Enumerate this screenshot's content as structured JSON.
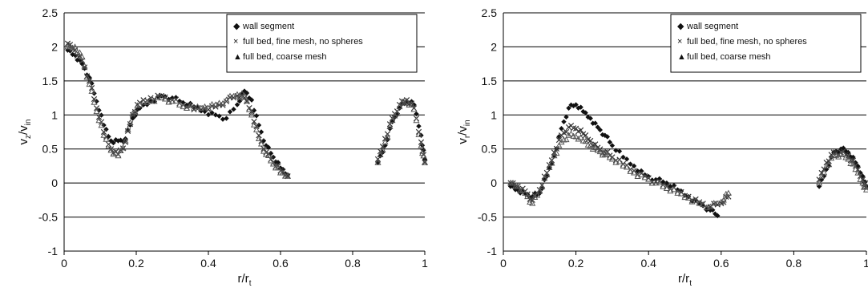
{
  "chart_data": [
    {
      "type": "scatter",
      "xlabel": {
        "base": "r/r",
        "sub": "t"
      },
      "ylabel": {
        "base": "v",
        "sub1": "z",
        "mid": "/v",
        "sub2": "in"
      },
      "xlim": [
        0,
        1
      ],
      "ylim": [
        -1,
        2.5
      ],
      "xticks": [
        "0",
        "0.2",
        "0.4",
        "0.6",
        "0.8",
        "1"
      ],
      "yticks": [
        "-1",
        "-0.5",
        "0",
        "0.5",
        "1",
        "1.5",
        "2",
        "2.5"
      ],
      "grid": "horizontal",
      "legend_position": "top-right",
      "legend": [
        {
          "marker": "◆",
          "label": "wall segment"
        },
        {
          "marker": "×",
          "label": "full bed, fine mesh, no spheres"
        },
        {
          "marker": "▲",
          "label": "full bed, coarse mesh"
        }
      ],
      "series": [
        {
          "marker": "diamond",
          "segments": [
            {
              "x": [
                0.01,
                0.03,
                0.05,
                0.07,
                0.09,
                0.11,
                0.13,
                0.15,
                0.17,
                0.19,
                0.21,
                0.24,
                0.27,
                0.3,
                0.33,
                0.36,
                0.39,
                0.42,
                0.45,
                0.48,
                0.5,
                0.52,
                0.54,
                0.56,
                0.58,
                0.6,
                0.62
              ],
              "y": [
                1.95,
                1.88,
                1.75,
                1.55,
                1.2,
                0.85,
                0.62,
                0.62,
                0.65,
                0.95,
                1.1,
                1.2,
                1.28,
                1.25,
                1.18,
                1.12,
                1.05,
                1.0,
                0.95,
                1.15,
                1.35,
                1.22,
                0.85,
                0.55,
                0.38,
                0.22,
                0.12
              ]
            },
            {
              "x": [
                0.87,
                0.89,
                0.91,
                0.93,
                0.95,
                0.97,
                0.99,
                1.0
              ],
              "y": [
                0.3,
                0.55,
                0.9,
                1.1,
                1.2,
                1.15,
                0.7,
                0.35
              ]
            }
          ]
        },
        {
          "marker": "cross",
          "segments": [
            {
              "x": [
                0.01,
                0.03,
                0.05,
                0.07,
                0.09,
                0.11,
                0.13,
                0.15,
                0.17,
                0.19,
                0.21,
                0.24,
                0.27,
                0.3,
                0.33,
                0.36,
                0.39,
                0.42,
                0.45,
                0.48,
                0.5,
                0.52,
                0.54,
                0.56,
                0.58,
                0.6,
                0.62
              ],
              "y": [
                2.05,
                1.95,
                1.8,
                1.5,
                1.1,
                0.75,
                0.5,
                0.42,
                0.6,
                1.0,
                1.18,
                1.25,
                1.28,
                1.22,
                1.15,
                1.08,
                1.1,
                1.12,
                1.2,
                1.28,
                1.25,
                1.05,
                0.7,
                0.45,
                0.3,
                0.18,
                0.1
              ]
            },
            {
              "x": [
                0.87,
                0.89,
                0.91,
                0.93,
                0.95,
                0.97,
                0.99,
                1.0
              ],
              "y": [
                0.35,
                0.65,
                0.95,
                1.15,
                1.22,
                1.1,
                0.6,
                0.3
              ]
            }
          ]
        },
        {
          "marker": "triangle",
          "segments": [
            {
              "x": [
                0.01,
                0.03,
                0.05,
                0.07,
                0.09,
                0.11,
                0.13,
                0.15,
                0.17,
                0.19,
                0.21,
                0.24,
                0.27,
                0.3,
                0.33,
                0.36,
                0.39,
                0.42,
                0.45,
                0.48,
                0.5,
                0.52,
                0.54,
                0.56,
                0.58,
                0.6,
                0.62
              ],
              "y": [
                2.0,
                2.0,
                1.85,
                1.45,
                1.05,
                0.7,
                0.48,
                0.4,
                0.62,
                1.02,
                1.15,
                1.22,
                1.25,
                1.2,
                1.12,
                1.1,
                1.12,
                1.15,
                1.22,
                1.3,
                1.28,
                1.0,
                0.65,
                0.42,
                0.28,
                0.15,
                0.1
              ]
            },
            {
              "x": [
                0.87,
                0.89,
                0.91,
                0.93,
                0.95,
                0.97,
                0.99,
                1.0
              ],
              "y": [
                0.3,
                0.6,
                0.92,
                1.12,
                1.2,
                1.08,
                0.55,
                0.3
              ]
            }
          ]
        }
      ]
    },
    {
      "type": "scatter",
      "xlabel": {
        "base": "r/r",
        "sub": "t"
      },
      "ylabel": {
        "base": "v",
        "sub1": "r",
        "mid": "/v",
        "sub2": "in"
      },
      "xlim": [
        0,
        1
      ],
      "ylim": [
        -1,
        2.5
      ],
      "xticks": [
        "0",
        "0.2",
        "0.4",
        "0.6",
        "0.8",
        "1"
      ],
      "yticks": [
        "-1",
        "-0.5",
        "0",
        "0.5",
        "1",
        "1.5",
        "2",
        "2.5"
      ],
      "grid": "horizontal",
      "legend_position": "top-right",
      "legend": [
        {
          "marker": "◆",
          "label": "wall segment"
        },
        {
          "marker": "×",
          "label": "full bed, fine mesh, no spheres"
        },
        {
          "marker": "▲",
          "label": "full bed, coarse mesh"
        }
      ],
      "series": [
        {
          "marker": "diamond",
          "segments": [
            {
              "x": [
                0.02,
                0.04,
                0.06,
                0.08,
                0.1,
                0.12,
                0.14,
                0.16,
                0.18,
                0.2,
                0.22,
                0.24,
                0.26,
                0.28,
                0.3,
                0.33,
                0.36,
                0.39,
                0.42,
                0.45,
                0.48,
                0.51,
                0.54,
                0.57,
                0.59
              ],
              "y": [
                -0.05,
                -0.1,
                -0.15,
                -0.2,
                -0.15,
                0.1,
                0.4,
                0.8,
                1.1,
                1.15,
                1.05,
                0.95,
                0.82,
                0.7,
                0.55,
                0.38,
                0.25,
                0.12,
                0.05,
                0.0,
                -0.1,
                -0.2,
                -0.3,
                -0.4,
                -0.48
              ]
            },
            {
              "x": [
                0.87,
                0.89,
                0.91,
                0.93,
                0.95,
                0.97,
                0.99,
                1.0
              ],
              "y": [
                -0.05,
                0.2,
                0.45,
                0.5,
                0.45,
                0.3,
                0.1,
                -0.05
              ]
            }
          ]
        },
        {
          "marker": "cross",
          "segments": [
            {
              "x": [
                0.02,
                0.04,
                0.06,
                0.08,
                0.1,
                0.12,
                0.14,
                0.16,
                0.18,
                0.2,
                0.22,
                0.24,
                0.26,
                0.28,
                0.3,
                0.33,
                0.36,
                0.39,
                0.42,
                0.45,
                0.48,
                0.51,
                0.54,
                0.57,
                0.6,
                0.62
              ],
              "y": [
                0.0,
                -0.05,
                -0.12,
                -0.25,
                -0.1,
                0.15,
                0.45,
                0.7,
                0.82,
                0.8,
                0.72,
                0.62,
                0.52,
                0.45,
                0.38,
                0.28,
                0.18,
                0.1,
                0.02,
                -0.05,
                -0.12,
                -0.2,
                -0.28,
                -0.35,
                -0.3,
                -0.2
              ]
            },
            {
              "x": [
                0.87,
                0.89,
                0.91,
                0.93,
                0.95,
                0.97,
                0.99,
                1.0
              ],
              "y": [
                0.05,
                0.3,
                0.45,
                0.45,
                0.4,
                0.25,
                0.05,
                -0.05
              ]
            }
          ]
        },
        {
          "marker": "triangle",
          "segments": [
            {
              "x": [
                0.02,
                0.04,
                0.06,
                0.08,
                0.1,
                0.12,
                0.14,
                0.16,
                0.18,
                0.2,
                0.22,
                0.24,
                0.26,
                0.28,
                0.3,
                0.33,
                0.36,
                0.39,
                0.42,
                0.45,
                0.48,
                0.51,
                0.54,
                0.57,
                0.6,
                0.62
              ],
              "y": [
                0.0,
                -0.05,
                -0.15,
                -0.3,
                -0.12,
                0.12,
                0.4,
                0.6,
                0.7,
                0.68,
                0.62,
                0.55,
                0.48,
                0.42,
                0.35,
                0.25,
                0.15,
                0.08,
                0.0,
                -0.08,
                -0.15,
                -0.22,
                -0.3,
                -0.35,
                -0.28,
                -0.15
              ]
            },
            {
              "x": [
                0.87,
                0.89,
                0.91,
                0.93,
                0.95,
                0.97,
                0.99,
                1.0
              ],
              "y": [
                0.0,
                0.25,
                0.4,
                0.42,
                0.35,
                0.2,
                0.0,
                -0.1
              ]
            }
          ]
        }
      ]
    }
  ]
}
